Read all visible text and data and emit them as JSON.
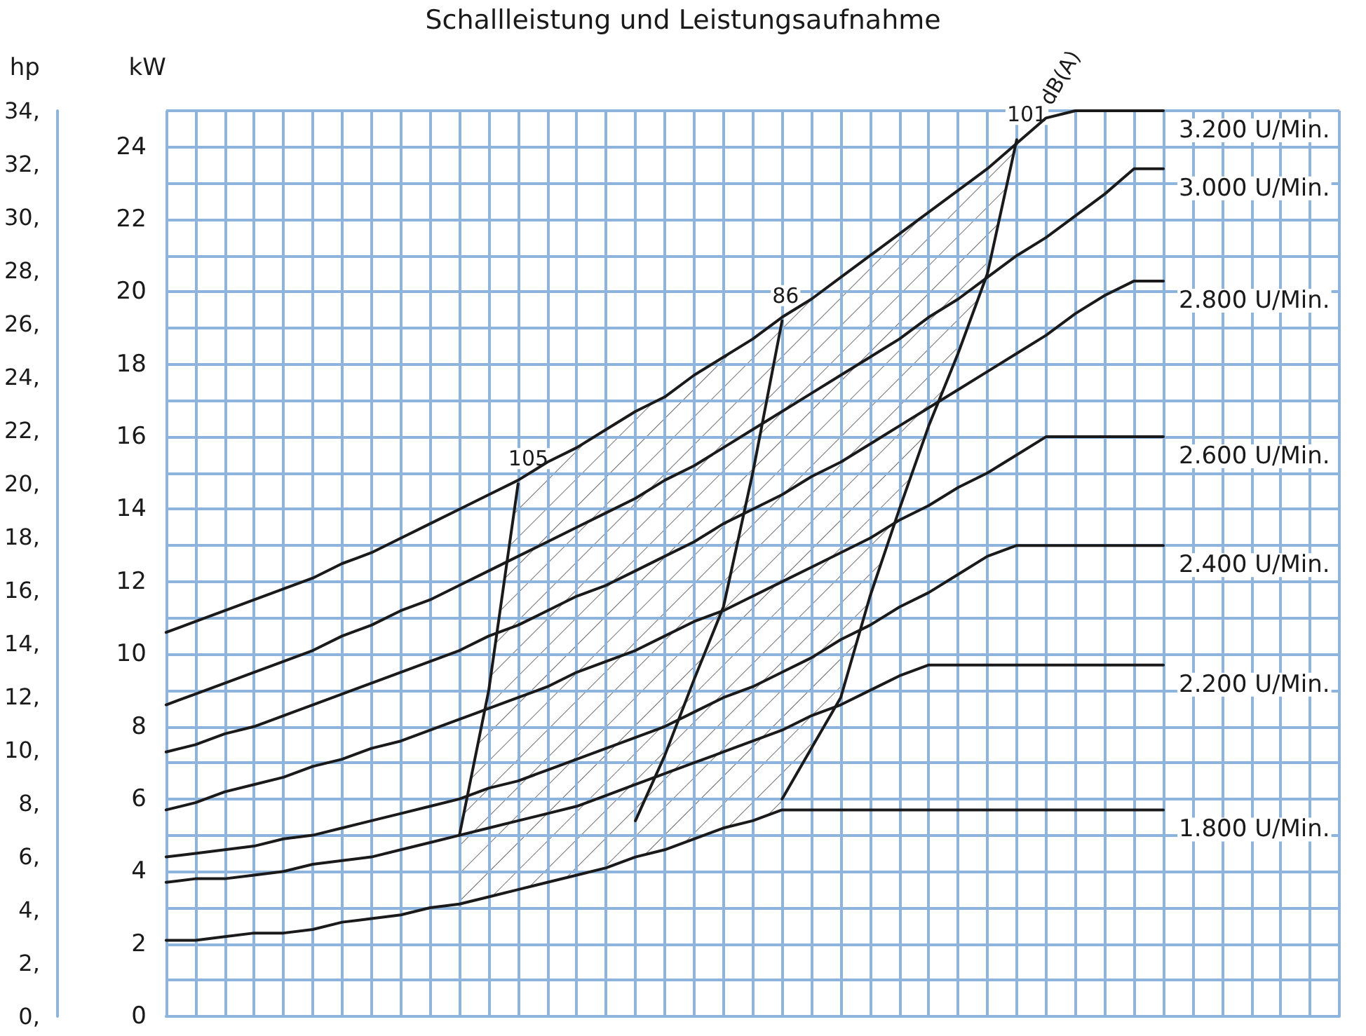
{
  "chart_data": {
    "type": "line",
    "title": "Schallleistung und Leistungsaufnahme",
    "ylabel": "kW",
    "y2label": "hp",
    "categories": [
      null,
      null,
      null,
      null,
      null,
      null,
      null,
      null,
      null,
      null,
      null,
      null,
      null,
      null,
      null,
      null,
      null,
      null,
      null,
      null,
      null,
      null,
      null,
      null,
      null,
      null,
      null,
      null,
      null,
      null,
      null,
      null,
      null,
      null,
      null,
      null,
      null,
      null,
      null,
      null,
      null
    ],
    "series": [
      {
        "name": "1.800 U/Min.",
        "color": "#1a1a1a",
        "values": [
          2.1,
          2.1,
          2.2,
          2.3,
          2.3,
          2.4,
          2.6,
          2.7,
          2.8,
          3.0,
          3.1,
          3.3,
          3.5,
          3.7,
          3.9,
          4.1,
          4.4,
          4.6,
          4.9,
          5.2,
          5.4,
          5.7,
          5.7,
          5.7,
          5.7,
          5.7,
          5.7,
          5.7,
          5.7,
          5.7,
          5.7,
          5.7,
          5.7,
          5.7,
          5.7,
          null,
          null,
          null,
          null,
          null,
          null
        ]
      },
      {
        "name": "2.200 U/Min.",
        "color": "#1a1a1a",
        "values": [
          3.7,
          3.8,
          3.8,
          3.9,
          4.0,
          4.2,
          4.3,
          4.4,
          4.6,
          4.8,
          5.0,
          5.2,
          5.4,
          5.6,
          5.8,
          6.1,
          6.4,
          6.7,
          7.0,
          7.3,
          7.6,
          7.9,
          8.3,
          8.6,
          9.0,
          9.4,
          9.7,
          9.7,
          9.7,
          9.7,
          9.7,
          9.7,
          9.7,
          9.7,
          9.7,
          null,
          null,
          null,
          null,
          null,
          null
        ]
      },
      {
        "name": "2.400 U/Min.",
        "color": "#1a1a1a",
        "values": [
          4.4,
          4.5,
          4.6,
          4.7,
          4.9,
          5.0,
          5.2,
          5.4,
          5.6,
          5.8,
          6.0,
          6.3,
          6.5,
          6.8,
          7.1,
          7.4,
          7.7,
          8.0,
          8.4,
          8.8,
          9.1,
          9.5,
          9.9,
          10.4,
          10.8,
          11.3,
          11.7,
          12.2,
          12.7,
          13.0,
          13.0,
          13.0,
          13.0,
          13.0,
          13.0,
          null,
          null,
          null,
          null,
          null,
          null
        ]
      },
      {
        "name": "2.600 U/Min.",
        "color": "#1a1a1a",
        "values": [
          5.7,
          5.9,
          6.2,
          6.4,
          6.6,
          6.9,
          7.1,
          7.4,
          7.6,
          7.9,
          8.2,
          8.5,
          8.8,
          9.1,
          9.5,
          9.8,
          10.1,
          10.5,
          10.9,
          11.2,
          11.6,
          12.0,
          12.4,
          12.8,
          13.2,
          13.7,
          14.1,
          14.6,
          15.0,
          15.5,
          16.0,
          16.0,
          16.0,
          16.0,
          16.0,
          null,
          null,
          null,
          null,
          null,
          null
        ]
      },
      {
        "name": "2.800 U/Min.",
        "color": "#1a1a1a",
        "values": [
          7.3,
          7.5,
          7.8,
          8.0,
          8.3,
          8.6,
          8.9,
          9.2,
          9.5,
          9.8,
          10.1,
          10.5,
          10.8,
          11.2,
          11.6,
          11.9,
          12.3,
          12.7,
          13.1,
          13.6,
          14.0,
          14.4,
          14.9,
          15.3,
          15.8,
          16.3,
          16.8,
          17.3,
          17.8,
          18.3,
          18.8,
          19.4,
          19.9,
          20.3,
          20.3,
          null,
          null,
          null,
          null,
          null,
          null
        ]
      },
      {
        "name": "3.000 U/Min.",
        "color": "#1a1a1a",
        "values": [
          8.6,
          8.9,
          9.2,
          9.5,
          9.8,
          10.1,
          10.5,
          10.8,
          11.2,
          11.5,
          11.9,
          12.3,
          12.7,
          13.1,
          13.5,
          13.9,
          14.3,
          14.8,
          15.2,
          15.7,
          16.2,
          16.7,
          17.2,
          17.7,
          18.2,
          18.7,
          19.3,
          19.8,
          20.4,
          21.0,
          21.5,
          22.1,
          22.7,
          23.4,
          23.4,
          null,
          null,
          null,
          null,
          null,
          null
        ]
      },
      {
        "name": "3.200 U/Min.",
        "color": "#1a1a1a",
        "values": [
          10.6,
          10.9,
          11.2,
          11.5,
          11.8,
          12.1,
          12.5,
          12.8,
          13.2,
          13.6,
          14.0,
          14.4,
          14.8,
          15.3,
          15.7,
          16.2,
          16.7,
          17.1,
          17.7,
          18.2,
          18.7,
          19.3,
          19.8,
          20.4,
          21.0,
          21.6,
          22.2,
          22.8,
          23.4,
          24.1,
          24.8,
          25.0,
          25.0,
          25.0,
          25.0,
          null,
          null,
          null,
          null,
          null,
          null
        ]
      },
      {
        "name": "105",
        "color": "#1a1a1a",
        "values": [
          null,
          null,
          null,
          null,
          null,
          null,
          null,
          null,
          null,
          null,
          5.0,
          9.0,
          14.7,
          null,
          null,
          null,
          null,
          null,
          null,
          null,
          null,
          null,
          null,
          null,
          null,
          null,
          null,
          null,
          null,
          null,
          null,
          null,
          null,
          null,
          null,
          null,
          null,
          null,
          null,
          null,
          null
        ]
      },
      {
        "name": "86",
        "color": "#1a1a1a",
        "values": [
          null,
          null,
          null,
          null,
          null,
          null,
          null,
          null,
          null,
          null,
          null,
          null,
          null,
          null,
          null,
          null,
          5.4,
          7.2,
          9.3,
          11.3,
          15.0,
          19.2,
          null,
          null,
          null,
          null,
          null,
          null,
          null,
          null,
          null,
          null,
          null,
          null,
          null,
          null,
          null,
          null,
          null,
          null,
          null
        ]
      },
      {
        "name": "101",
        "color": "#1a1a1a",
        "values": [
          null,
          null,
          null,
          null,
          null,
          null,
          null,
          null,
          null,
          null,
          null,
          null,
          null,
          null,
          null,
          null,
          null,
          null,
          null,
          null,
          null,
          6.0,
          7.4,
          8.8,
          11.6,
          14.0,
          16.3,
          18.3,
          20.5,
          24.2,
          null,
          null,
          null,
          null,
          null,
          null,
          null,
          null,
          null,
          null,
          null
        ]
      }
    ],
    "annotations": [
      "dB(A)"
    ],
    "ylim": [
      0,
      25
    ],
    "yticks": [
      0,
      {
        "value": 1,
        "label": null
      },
      2,
      {
        "value": 3,
        "label": null
      },
      4,
      {
        "value": 5,
        "label": null
      },
      6,
      {
        "value": 7,
        "label": null
      },
      8,
      {
        "value": 9,
        "label": null
      },
      10,
      {
        "value": 11,
        "label": null
      },
      12,
      {
        "value": 13,
        "label": null
      },
      14,
      {
        "value": 15,
        "label": null
      },
      16,
      {
        "value": 17,
        "label": null
      },
      18,
      {
        "value": 19,
        "label": null
      },
      20,
      {
        "value": 21,
        "label": null
      },
      22,
      {
        "value": 23,
        "label": null
      },
      24,
      {
        "value": 25,
        "label": null
      }
    ],
    "y2lim": [
      0,
      34
    ],
    "y2ticks": [
      {
        "value": 0,
        "label": "0,"
      },
      {
        "value": 2,
        "label": "2,"
      },
      {
        "value": 4,
        "label": "4,"
      },
      {
        "value": 6,
        "label": "6,"
      },
      {
        "value": 8,
        "label": "8,"
      },
      {
        "value": 10,
        "label": "10,"
      },
      {
        "value": 12,
        "label": "12,"
      },
      {
        "value": 14,
        "label": "14,"
      },
      {
        "value": 16,
        "label": "16,"
      },
      {
        "value": 18,
        "label": "18,"
      },
      {
        "value": 20,
        "label": "20,"
      },
      {
        "value": 22,
        "label": "22,"
      },
      {
        "value": 24,
        "label": "24,"
      },
      {
        "value": 26,
        "label": "26,"
      },
      {
        "value": 28,
        "label": "28,"
      },
      {
        "value": 30,
        "label": "30,"
      },
      {
        "value": 32,
        "label": "32,"
      },
      {
        "value": 34,
        "label": "34,"
      }
    ],
    "tick_labels": "y",
    "grid": true,
    "legend": false,
    "marker": "none",
    "line_style": "solid"
  }
}
